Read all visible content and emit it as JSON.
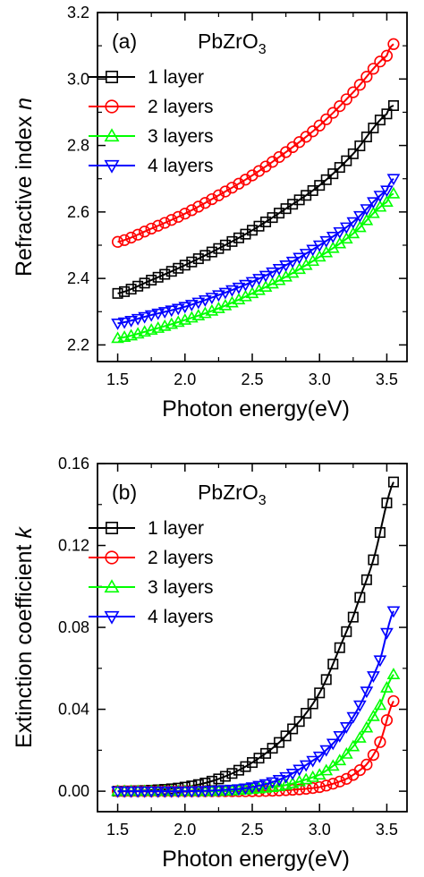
{
  "chart_data": [
    {
      "type": "line",
      "panel_label": "(a)",
      "annotation": {
        "base": "PbZrO",
        "subscript": "3"
      },
      "xlabel": "Photon energy(eV)",
      "ylabel_text": "Refractive index ",
      "ylabel_var": "n",
      "xlim": [
        1.35,
        3.65
      ],
      "ylim": [
        2.15,
        3.2
      ],
      "xticks": [
        "1.5",
        "2.0",
        "2.5",
        "3.0",
        "3.5"
      ],
      "yticks": [
        "2.2",
        "2.4",
        "2.6",
        "2.8",
        "3.0",
        "3.2"
      ],
      "legend_position": "upper-left",
      "series": [
        {
          "name": "1 layer",
          "color": "#000000",
          "marker": "square",
          "x": [
            1.5,
            1.75,
            2.0,
            2.25,
            2.5,
            2.75,
            3.0,
            3.25,
            3.5,
            3.55
          ],
          "y": [
            2.355,
            2.395,
            2.44,
            2.49,
            2.545,
            2.61,
            2.68,
            2.775,
            2.895,
            2.92
          ]
        },
        {
          "name": "2 layers",
          "color": "#ff0000",
          "marker": "circle",
          "x": [
            1.5,
            1.75,
            2.0,
            2.25,
            2.5,
            2.75,
            3.0,
            3.25,
            3.5,
            3.55
          ],
          "y": [
            2.51,
            2.55,
            2.595,
            2.65,
            2.71,
            2.78,
            2.86,
            2.96,
            3.07,
            3.105
          ]
        },
        {
          "name": "3 layers",
          "color": "#00ff00",
          "marker": "triangle-up",
          "x": [
            1.5,
            1.75,
            2.0,
            2.25,
            2.5,
            2.75,
            3.0,
            3.25,
            3.5,
            3.55
          ],
          "y": [
            2.22,
            2.245,
            2.275,
            2.31,
            2.355,
            2.405,
            2.465,
            2.535,
            2.63,
            2.655
          ]
        },
        {
          "name": "4 layers",
          "color": "#0000ff",
          "marker": "triangle-down",
          "x": [
            1.5,
            1.75,
            2.0,
            2.25,
            2.5,
            2.75,
            3.0,
            3.25,
            3.5,
            3.55
          ],
          "y": [
            2.265,
            2.29,
            2.315,
            2.35,
            2.39,
            2.44,
            2.5,
            2.57,
            2.665,
            2.7
          ]
        }
      ]
    },
    {
      "type": "line",
      "panel_label": "(b)",
      "annotation": {
        "base": "PbZrO",
        "subscript": "3"
      },
      "xlabel": "Photon energy(eV)",
      "ylabel_text": "Extinction coefficient ",
      "ylabel_var": "k",
      "xlim": [
        1.35,
        3.65
      ],
      "ylim": [
        -0.01,
        0.16
      ],
      "xticks": [
        "1.5",
        "2.0",
        "2.5",
        "3.0",
        "3.5"
      ],
      "yticks": [
        "0.00",
        "0.04",
        "0.08",
        "0.12",
        "0.16"
      ],
      "legend_position": "upper-left",
      "series": [
        {
          "name": "1 layer",
          "color": "#000000",
          "marker": "square",
          "x": [
            1.5,
            1.75,
            2.0,
            2.25,
            2.5,
            2.75,
            3.0,
            3.25,
            3.4,
            3.55
          ],
          "y": [
            0.0,
            0.0005,
            0.002,
            0.006,
            0.014,
            0.027,
            0.048,
            0.085,
            0.113,
            0.151
          ]
        },
        {
          "name": "2 layers",
          "color": "#ff0000",
          "marker": "circle",
          "x": [
            1.5,
            1.75,
            2.0,
            2.25,
            2.5,
            2.75,
            3.0,
            3.2,
            3.35,
            3.45,
            3.55
          ],
          "y": [
            0.0,
            0.0,
            0.0,
            0.0,
            0.0,
            0.0005,
            0.002,
            0.006,
            0.013,
            0.024,
            0.044
          ]
        },
        {
          "name": "3 layers",
          "color": "#00ff00",
          "marker": "triangle-up",
          "x": [
            1.5,
            1.75,
            2.0,
            2.25,
            2.5,
            2.75,
            3.0,
            3.15,
            3.3,
            3.45,
            3.55
          ],
          "y": [
            0.0,
            0.0,
            0.0,
            0.0,
            0.001,
            0.003,
            0.008,
            0.015,
            0.026,
            0.042,
            0.057
          ]
        },
        {
          "name": "4 layers",
          "color": "#0000ff",
          "marker": "triangle-down",
          "x": [
            1.5,
            1.75,
            2.0,
            2.25,
            2.5,
            2.75,
            3.0,
            3.15,
            3.3,
            3.45,
            3.55
          ],
          "y": [
            0.0,
            0.0,
            0.0,
            0.0005,
            0.002,
            0.007,
            0.017,
            0.027,
            0.042,
            0.064,
            0.088
          ]
        }
      ]
    }
  ]
}
